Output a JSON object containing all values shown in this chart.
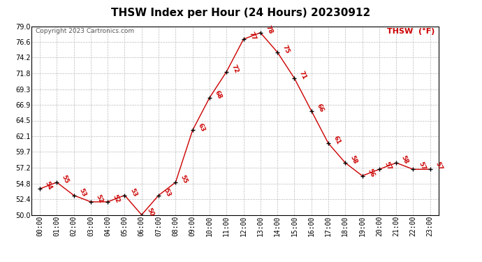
{
  "title": "THSW Index per Hour (24 Hours) 20230912",
  "copyright": "Copyright 2023 Cartronics.com",
  "legend_label": "THSW  (°F)",
  "hours": [
    "00:00",
    "01:00",
    "02:00",
    "03:00",
    "04:00",
    "05:00",
    "06:00",
    "07:00",
    "08:00",
    "09:00",
    "10:00",
    "11:00",
    "12:00",
    "13:00",
    "14:00",
    "15:00",
    "16:00",
    "17:00",
    "18:00",
    "19:00",
    "20:00",
    "21:00",
    "22:00",
    "23:00"
  ],
  "values": [
    54,
    55,
    53,
    52,
    52,
    53,
    50,
    53,
    55,
    63,
    68,
    72,
    77,
    78,
    75,
    71,
    66,
    61,
    58,
    56,
    57,
    58,
    57,
    57
  ],
  "line_color": "#cc0000",
  "marker_color": "#000000",
  "bg_color": "#ffffff",
  "grid_color": "#bbbbbb",
  "ylim_min": 50.0,
  "ylim_max": 79.0,
  "yticks": [
    50.0,
    52.4,
    54.8,
    57.2,
    59.7,
    62.1,
    64.5,
    66.9,
    69.3,
    71.8,
    74.2,
    76.6,
    79.0
  ],
  "title_fontsize": 11,
  "label_fontsize": 7,
  "annotation_fontsize": 6.5,
  "copyright_fontsize": 6.5,
  "legend_fontsize": 8
}
